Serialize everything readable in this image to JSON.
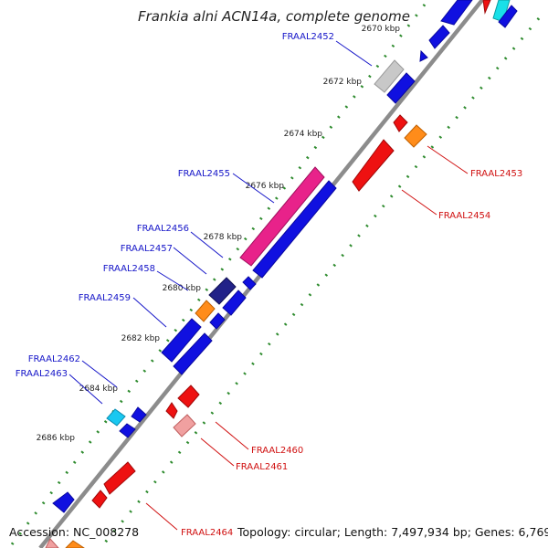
{
  "title": "Frankia alni ACN14a, complete genome",
  "footer": {
    "accession": "Accession: NC_008278",
    "summary": "Topology: circular; Length: 7,497,934 bp; Genes: 6,769"
  },
  "colors": {
    "backbone": "#8c8c8c",
    "tick_dots": "#2e8b2e",
    "label_plus": "#1515c8",
    "label_minus": "#d01010"
  },
  "ticks": [
    "2670 kbp",
    "2672 kbp",
    "2674 kbp",
    "2676 kbp",
    "2678 kbp",
    "2680 kbp",
    "2682 kbp",
    "2684 kbp",
    "2686 kbp"
  ],
  "gene_labels": [
    {
      "name": "FRAAL2452",
      "strand": "plus"
    },
    {
      "name": "FRAAL2453",
      "strand": "minus"
    },
    {
      "name": "FRAAL2454",
      "strand": "minus"
    },
    {
      "name": "FRAAL2455",
      "strand": "plus"
    },
    {
      "name": "FRAAL2456",
      "strand": "plus"
    },
    {
      "name": "FRAAL2457",
      "strand": "plus"
    },
    {
      "name": "FRAAL2458",
      "strand": "plus"
    },
    {
      "name": "FRAAL2459",
      "strand": "plus"
    },
    {
      "name": "FRAAL2460",
      "strand": "minus"
    },
    {
      "name": "FRAAL2461",
      "strand": "minus"
    },
    {
      "name": "FRAAL2462",
      "strand": "plus"
    },
    {
      "name": "FRAAL2463",
      "strand": "plus"
    },
    {
      "name": "FRAAL2464",
      "strand": "minus"
    }
  ]
}
